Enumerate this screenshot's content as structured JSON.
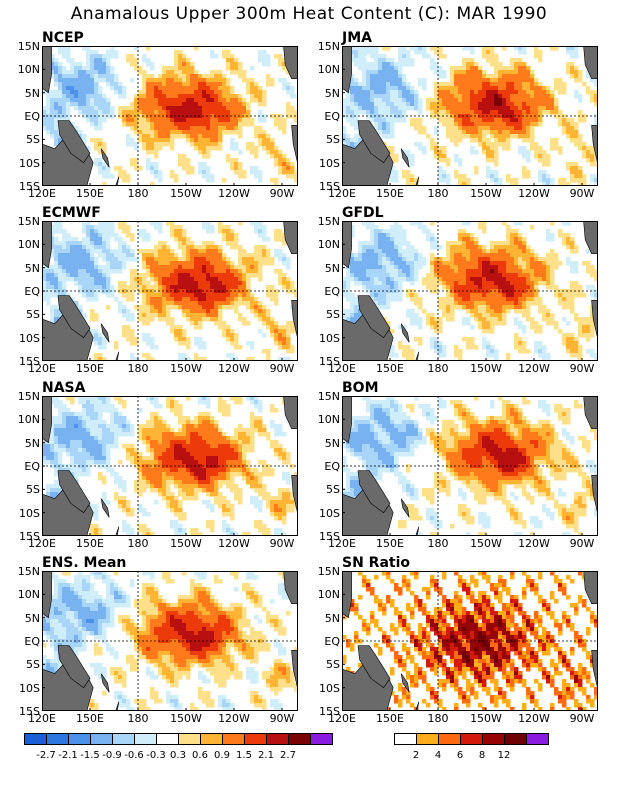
{
  "title": "Anamalous Upper 300m Heat Content (C): MAR 1990",
  "axes": {
    "lat_labels": [
      "15N",
      "10N",
      "5N",
      "EQ",
      "5S",
      "10S",
      "15S"
    ],
    "lon_labels": [
      "120E",
      "150E",
      "180",
      "150W",
      "120W",
      "90W"
    ],
    "lon_range": [
      120,
      280
    ],
    "lat_range": [
      -15,
      15
    ]
  },
  "panels": [
    {
      "name": "NCEP",
      "type": "anom"
    },
    {
      "name": "JMA",
      "type": "anom"
    },
    {
      "name": "ECMWF",
      "type": "anom"
    },
    {
      "name": "GFDL",
      "type": "anom"
    },
    {
      "name": "NASA",
      "type": "anom"
    },
    {
      "name": "BOM",
      "type": "anom"
    },
    {
      "name": "ENS. Mean",
      "type": "anom"
    },
    {
      "name": "SN Ratio",
      "type": "snr"
    }
  ],
  "colorbar_anom": {
    "labels": [
      "-2.7",
      "-2.1",
      "-1.5",
      "-0.9",
      "-0.6",
      "-0.3",
      "0.3",
      "0.6",
      "0.9",
      "1.5",
      "2.1",
      "2.7"
    ],
    "colors": [
      "#1a5fd6",
      "#2f77e0",
      "#4d92ea",
      "#78b2f0",
      "#a8d5f8",
      "#cfeef9",
      "#ffffff",
      "#ffe08a",
      "#ffb433",
      "#ff7a1a",
      "#ec3a0a",
      "#b81010",
      "#7a0404",
      "#8a1ce0"
    ]
  },
  "colorbar_snr": {
    "labels": [
      "2",
      "4",
      "6",
      "8",
      "12"
    ],
    "colors": [
      "#ffffff",
      "#ffae1a",
      "#ff6a10",
      "#d41a0a",
      "#960404",
      "#6e0202",
      "#8a1ce0"
    ]
  },
  "colors": {
    "land": "#6a6a6a",
    "frame": "#000000"
  }
}
